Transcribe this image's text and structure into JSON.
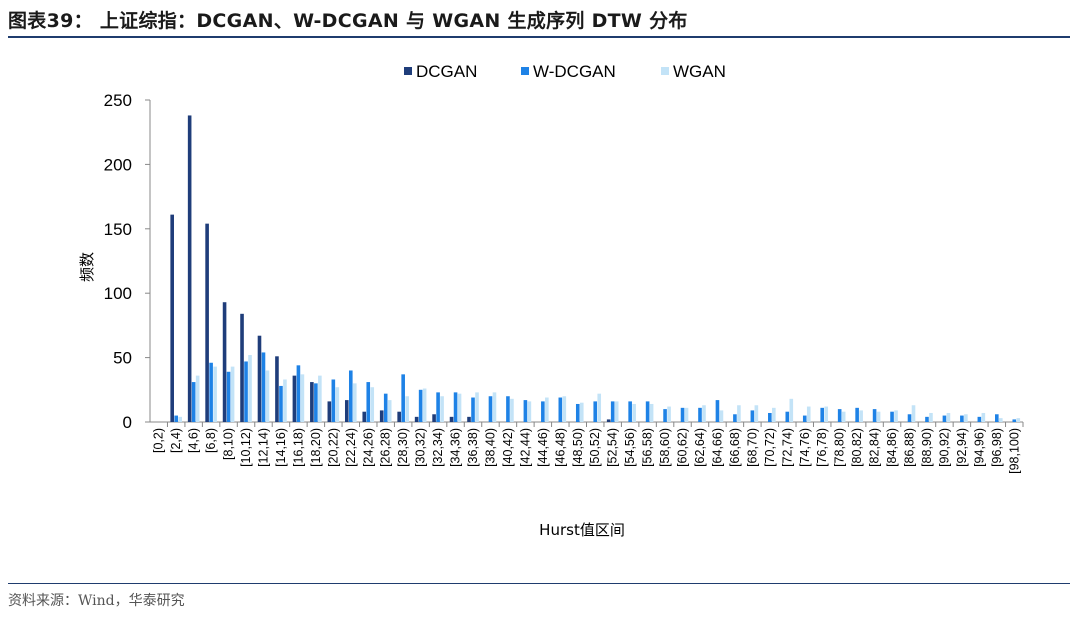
{
  "header": {
    "title": "图表39：  上证综指：DCGAN、W-DCGAN 与 WGAN 生成序列 DTW 分布"
  },
  "footer": {
    "source": "资料来源：Wind，华泰研究"
  },
  "chart_data": {
    "type": "bar",
    "xlabel": "Hurst值区间",
    "ylabel": "频数",
    "ylim": [
      0,
      250
    ],
    "yticks": [
      0,
      50,
      100,
      150,
      200,
      250
    ],
    "grid": false,
    "legend_position": "top",
    "categories": [
      "[0,2)",
      "[2,4)",
      "[4,6)",
      "[6,8)",
      "[8,10)",
      "[10,12)",
      "[12,14)",
      "[14,16)",
      "[16,18)",
      "[18,20)",
      "[20,22)",
      "[22,24)",
      "[24,26)",
      "[26,28)",
      "[28,30)",
      "[30,32)",
      "[32,34)",
      "[34,36)",
      "[36,38)",
      "[38,40)",
      "[40,42)",
      "[42,44)",
      "[44,46)",
      "[46,48)",
      "[48,50)",
      "[50,52)",
      "[52,54)",
      "[54,56)",
      "[56,58)",
      "[58,60)",
      "[60,62)",
      "[62,64)",
      "[64,66)",
      "[66,68)",
      "[68,70)",
      "[70,72)",
      "[72,74)",
      "[74,76)",
      "[76,78)",
      "[78,80)",
      "[80,82)",
      "[82,84)",
      "[84,86)",
      "[86,88)",
      "[88,90)",
      "[90,92)",
      "[92,94)",
      "[94,96)",
      "[96,98)",
      "[98,100)"
    ],
    "series": [
      {
        "name": "DCGAN",
        "color": "#1f3d7a",
        "values": [
          0,
          161,
          238,
          154,
          93,
          84,
          67,
          51,
          36,
          31,
          16,
          17,
          8,
          9,
          8,
          4,
          6,
          4,
          4,
          0,
          0,
          0,
          0,
          0,
          0,
          0,
          2,
          0,
          0,
          0,
          0,
          0,
          0,
          0,
          0,
          0,
          0,
          0,
          0,
          0,
          0,
          0,
          0,
          0,
          0,
          0,
          0,
          0,
          0,
          0
        ]
      },
      {
        "name": "W-DCGAN",
        "color": "#1e82e6",
        "values": [
          0,
          5,
          31,
          46,
          39,
          47,
          54,
          28,
          44,
          30,
          33,
          40,
          31,
          22,
          37,
          25,
          23,
          23,
          19,
          20,
          20,
          17,
          16,
          19,
          14,
          16,
          16,
          16,
          16,
          10,
          11,
          11,
          17,
          6,
          9,
          7,
          8,
          5,
          11,
          10,
          11,
          10,
          8,
          6,
          4,
          5,
          5,
          4,
          6,
          2
        ]
      },
      {
        "name": "WGAN",
        "color": "#c3e3f7",
        "values": [
          0,
          4,
          36,
          43,
          43,
          52,
          40,
          33,
          37,
          36,
          27,
          30,
          27,
          17,
          20,
          26,
          20,
          22,
          23,
          23,
          18,
          16,
          19,
          20,
          15,
          22,
          16,
          14,
          14,
          12,
          11,
          13,
          9,
          13,
          13,
          11,
          18,
          12,
          12,
          8,
          9,
          8,
          9,
          13,
          7,
          7,
          6,
          7,
          3,
          3
        ]
      }
    ]
  }
}
